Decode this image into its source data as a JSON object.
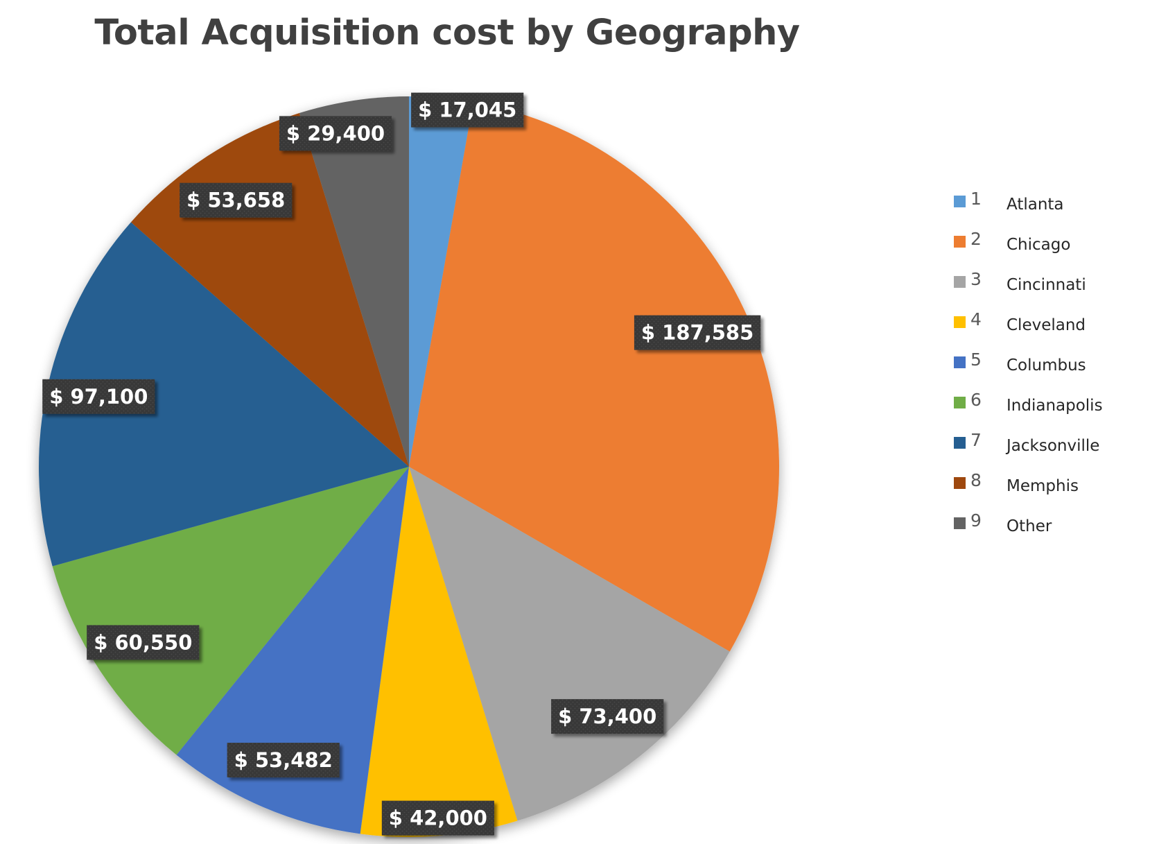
{
  "chart_data": {
    "type": "pie",
    "title": "Total Acquisition cost by Geography",
    "legend_position": "right",
    "slices": [
      {
        "legend_number": "1",
        "name": "Atlanta",
        "value": 17045,
        "label": "$ 17,045",
        "color": "#5B9BD5"
      },
      {
        "legend_number": "2",
        "name": "Chicago",
        "value": 187585,
        "label": "$ 187,585",
        "color": "#ED7D31"
      },
      {
        "legend_number": "3",
        "name": "Cincinnati",
        "value": 73400,
        "label": "$ 73,400",
        "color": "#A5A5A5"
      },
      {
        "legend_number": "4",
        "name": "Cleveland",
        "value": 42000,
        "label": "$ 42,000",
        "color": "#FFC000"
      },
      {
        "legend_number": "5",
        "name": "Columbus",
        "value": 53482,
        "label": "$ 53,482",
        "color": "#4472C4"
      },
      {
        "legend_number": "6",
        "name": "Indianapolis",
        "value": 60550,
        "label": "$ 60,550",
        "color": "#70AD47"
      },
      {
        "legend_number": "7",
        "name": "Jacksonville",
        "value": 97100,
        "label": "$ 97,100",
        "color": "#255E91"
      },
      {
        "legend_number": "8",
        "name": "Memphis",
        "value": 53658,
        "label": "$ 53,658",
        "color": "#9E480E"
      },
      {
        "legend_number": "9",
        "name": "Other",
        "value": 29400,
        "label": "$ 29,400",
        "color": "#636363"
      }
    ],
    "data_label_style": {
      "background": "#3A3A3A",
      "text_color": "#FFFFFF"
    }
  }
}
